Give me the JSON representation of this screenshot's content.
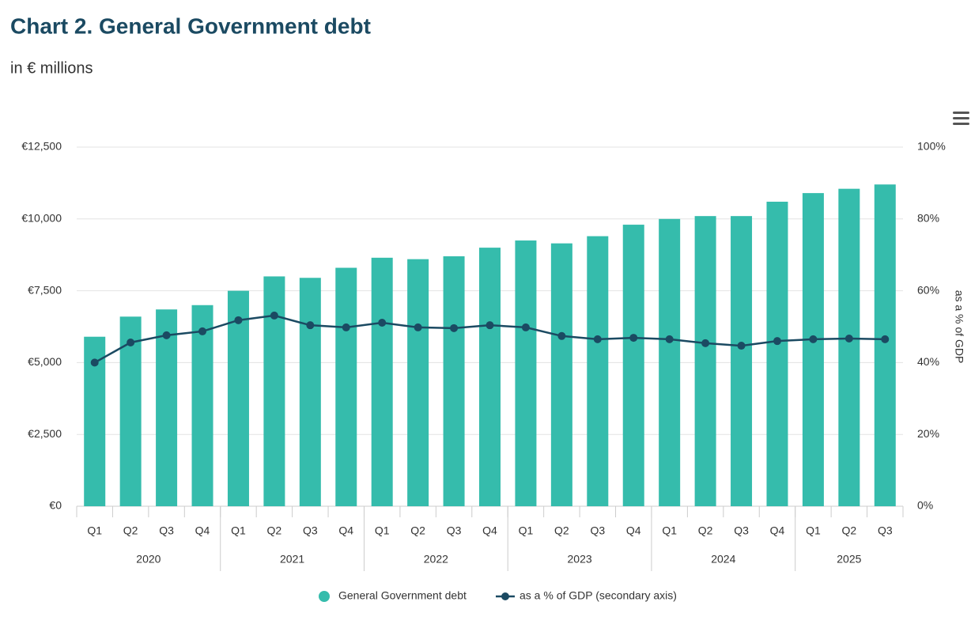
{
  "chart_data": {
    "type": "bar-line",
    "title": "Chart 2. General Government debt",
    "subtitle": "in € millions",
    "y2_label": "as a % of GDP",
    "categories": [
      "Q1",
      "Q2",
      "Q3",
      "Q4",
      "Q1",
      "Q2",
      "Q3",
      "Q4",
      "Q1",
      "Q2",
      "Q3",
      "Q4",
      "Q1",
      "Q2",
      "Q3",
      "Q4",
      "Q1",
      "Q2",
      "Q3",
      "Q4",
      "Q1",
      "Q2",
      "Q3"
    ],
    "category_groups": [
      "2020",
      "2021",
      "2022",
      "2023",
      "2024",
      "2025"
    ],
    "series": [
      {
        "name": "General Government debt",
        "type": "bar",
        "color": "#35bcac",
        "values": [
          5900,
          6600,
          6850,
          7000,
          7500,
          8000,
          7950,
          8300,
          8650,
          8600,
          8700,
          9000,
          9250,
          9150,
          9400,
          9800,
          10000,
          10100,
          10100,
          10600,
          10900,
          11050,
          11200
        ]
      },
      {
        "name": "as a % of GDP (secondary axis)",
        "type": "line",
        "axis": "y2",
        "color": "#1b4a62",
        "values": [
          40,
          45.6,
          47.6,
          48.7,
          51.8,
          53.1,
          50.4,
          49.8,
          51.1,
          49.8,
          49.6,
          50.4,
          49.8,
          47.4,
          46.5,
          46.9,
          46.5,
          45.4,
          44.7,
          46.0,
          46.5,
          46.7,
          46.5
        ]
      }
    ],
    "ylim": [
      0,
      12500
    ],
    "yticks": [
      {
        "value": 0,
        "label": "€0"
      },
      {
        "value": 2500,
        "label": "€2,500"
      },
      {
        "value": 5000,
        "label": "€5,000"
      },
      {
        "value": 7500,
        "label": "€7,500"
      },
      {
        "value": 10000,
        "label": "€10,000"
      },
      {
        "value": 12500,
        "label": "€12,500"
      }
    ],
    "y2lim": [
      0,
      100
    ],
    "y2ticks": [
      {
        "value": 0,
        "label": "0%"
      },
      {
        "value": 20,
        "label": "20%"
      },
      {
        "value": 40,
        "label": "40%"
      },
      {
        "value": 60,
        "label": "60%"
      },
      {
        "value": 80,
        "label": "80%"
      },
      {
        "value": 100,
        "label": "100%"
      }
    ],
    "grid": true,
    "legend": "bottom"
  }
}
